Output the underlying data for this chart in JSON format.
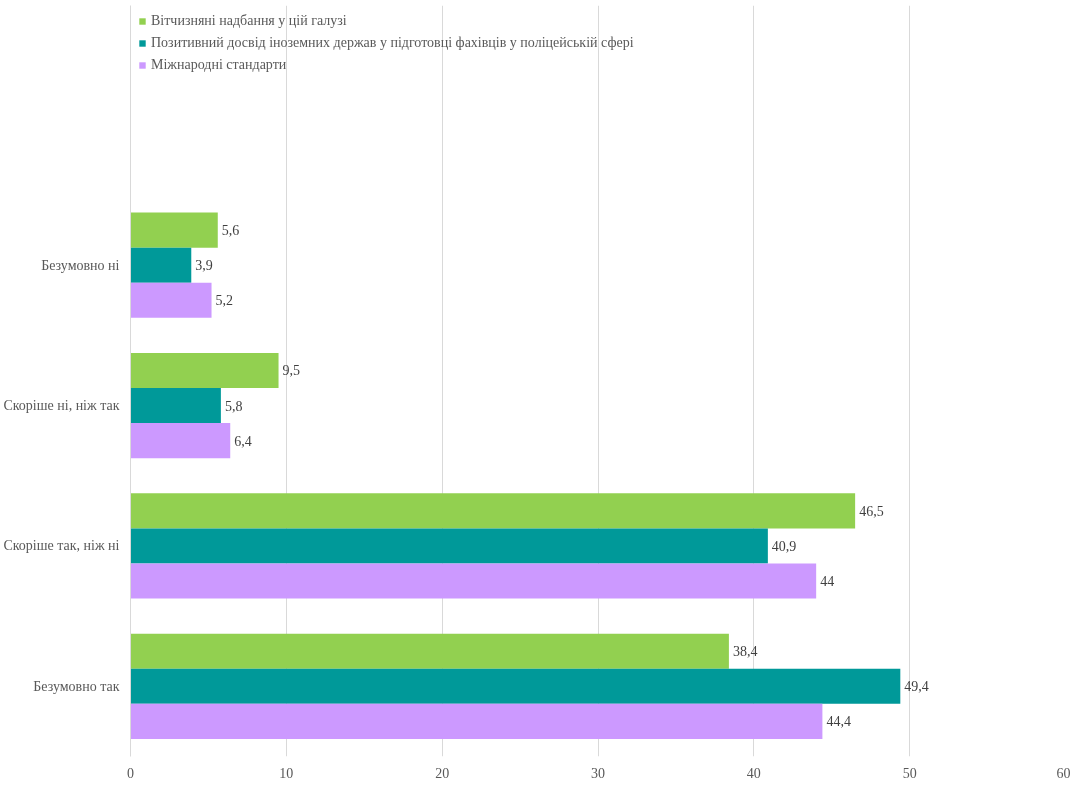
{
  "chart_data": {
    "type": "bar",
    "orientation": "horizontal",
    "categories": [
      "Безумовно ні",
      "Скоріше ні, ніж так",
      "Скоріше так, ніж ні",
      "Безумовно так"
    ],
    "series": [
      {
        "name": "Вітчизняні надбання у цій галузі",
        "color": "#92d050",
        "values": [
          5.6,
          9.5,
          46.5,
          38.4
        ],
        "value_labels": [
          "5,6",
          "9,5",
          "46,5",
          "38,4"
        ]
      },
      {
        "name": "Позитивний досвід іноземних держав у підготовці фахівців у поліцейській сфері",
        "color": "#009999",
        "values": [
          3.9,
          5.8,
          40.9,
          49.4
        ],
        "value_labels": [
          "3,9",
          "5,8",
          "40,9",
          "49,4"
        ]
      },
      {
        "name": "Міжнародні стандарти",
        "color": "#cc99ff",
        "values": [
          5.2,
          6.4,
          44,
          44.4
        ],
        "value_labels": [
          "5,2",
          "6,4",
          "44",
          "44,4"
        ]
      }
    ],
    "xlim": [
      0,
      60
    ],
    "xticks": [
      0,
      10,
      20,
      30,
      40,
      50,
      60
    ],
    "grid": "x",
    "legend": "top left"
  }
}
